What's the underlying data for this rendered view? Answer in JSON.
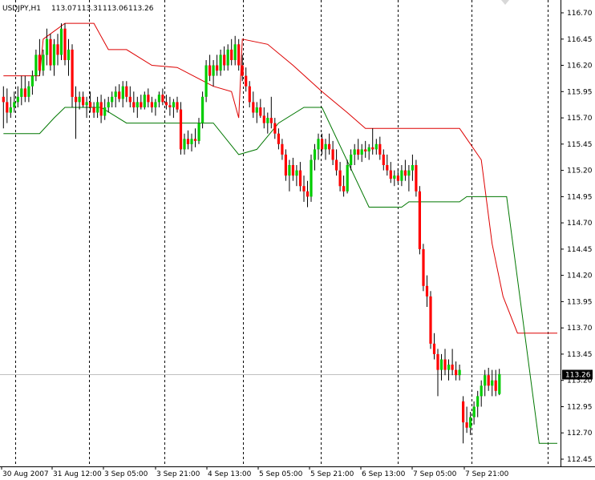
{
  "header": {
    "symbol": "USDJPY,H1",
    "open": "113.07",
    "high": "113.31",
    "low": "113.06",
    "close": "113.26"
  },
  "chart_data": {
    "type": "candlestick",
    "symbol": "USDJPY",
    "timeframe": "H1",
    "grid": false,
    "colors": {
      "background": "#ffffff",
      "bull": "#00cc00",
      "bear": "#ff0000",
      "doji": "#000000",
      "upper_band": "#dd0000",
      "lower_band": "#007700",
      "current_price_line": "#c0c0c0",
      "price_label_bg": "#000000",
      "price_label_text": "#ffffff"
    },
    "ylim": [
      112.4,
      116.85
    ],
    "y_ticks": [
      "116.70",
      "116.45",
      "116.20",
      "115.95",
      "115.70",
      "115.45",
      "115.20",
      "114.95",
      "114.70",
      "114.45",
      "114.20",
      "113.95",
      "113.70",
      "113.45",
      "113.20",
      "112.95",
      "112.70",
      "112.45"
    ],
    "current_price": "113.26",
    "x_ticks": [
      "30 Aug 2007",
      "31 Aug 12:00",
      "3 Sep 05:00",
      "3 Sep 21:00",
      "4 Sep 13:00",
      "5 Sep 05:00",
      "5 Sep 21:00",
      "6 Sep 13:00",
      "7 Sep 05:00",
      "7 Sep 21:00"
    ],
    "session_separators": 10,
    "candles": [
      {
        "o": 115.9,
        "h": 116.0,
        "l": 115.6,
        "c": 115.85
      },
      {
        "o": 115.85,
        "h": 115.98,
        "l": 115.65,
        "c": 115.75
      },
      {
        "o": 115.75,
        "h": 115.9,
        "l": 115.7,
        "c": 115.8
      },
      {
        "o": 115.8,
        "h": 115.95,
        "l": 115.75,
        "c": 115.85
      },
      {
        "o": 115.85,
        "h": 116.0,
        "l": 115.8,
        "c": 115.9
      },
      {
        "o": 115.9,
        "h": 116.1,
        "l": 115.82,
        "c": 115.98
      },
      {
        "o": 115.98,
        "h": 116.1,
        "l": 115.85,
        "c": 115.9
      },
      {
        "o": 115.9,
        "h": 116.05,
        "l": 115.85,
        "c": 116.0
      },
      {
        "o": 116.0,
        "h": 116.15,
        "l": 115.92,
        "c": 116.1
      },
      {
        "o": 116.1,
        "h": 116.35,
        "l": 116.05,
        "c": 116.3
      },
      {
        "o": 116.3,
        "h": 116.45,
        "l": 116.1,
        "c": 116.15
      },
      {
        "o": 116.15,
        "h": 116.35,
        "l": 116.1,
        "c": 116.3
      },
      {
        "o": 116.3,
        "h": 116.55,
        "l": 116.2,
        "c": 116.45
      },
      {
        "o": 116.45,
        "h": 116.5,
        "l": 116.15,
        "c": 116.2
      },
      {
        "o": 116.2,
        "h": 116.45,
        "l": 116.1,
        "c": 116.4
      },
      {
        "o": 116.4,
        "h": 116.5,
        "l": 116.2,
        "c": 116.3
      },
      {
        "o": 116.3,
        "h": 116.6,
        "l": 116.25,
        "c": 116.55
      },
      {
        "o": 116.55,
        "h": 116.6,
        "l": 116.2,
        "c": 116.25
      },
      {
        "o": 116.25,
        "h": 116.45,
        "l": 116.1,
        "c": 116.35
      },
      {
        "o": 116.35,
        "h": 116.4,
        "l": 115.8,
        "c": 115.9
      },
      {
        "o": 115.9,
        "h": 116.0,
        "l": 115.5,
        "c": 115.85
      },
      {
        "o": 115.85,
        "h": 115.95,
        "l": 115.78,
        "c": 115.9
      },
      {
        "o": 115.9,
        "h": 115.95,
        "l": 115.8,
        "c": 115.82
      },
      {
        "o": 115.82,
        "h": 115.9,
        "l": 115.7,
        "c": 115.85
      },
      {
        "o": 115.85,
        "h": 115.95,
        "l": 115.75,
        "c": 115.8
      },
      {
        "o": 115.8,
        "h": 115.85,
        "l": 115.7,
        "c": 115.75
      },
      {
        "o": 115.75,
        "h": 115.9,
        "l": 115.7,
        "c": 115.85
      },
      {
        "o": 115.85,
        "h": 115.92,
        "l": 115.65,
        "c": 115.72
      },
      {
        "o": 115.72,
        "h": 115.88,
        "l": 115.68,
        "c": 115.8
      },
      {
        "o": 115.8,
        "h": 115.9,
        "l": 115.75,
        "c": 115.85
      },
      {
        "o": 115.85,
        "h": 115.95,
        "l": 115.8,
        "c": 115.9
      },
      {
        "o": 115.9,
        "h": 116.0,
        "l": 115.8,
        "c": 115.95
      },
      {
        "o": 115.95,
        "h": 116.02,
        "l": 115.85,
        "c": 115.88
      },
      {
        "o": 115.88,
        "h": 116.05,
        "l": 115.8,
        "c": 116.0
      },
      {
        "o": 116.0,
        "h": 116.05,
        "l": 115.85,
        "c": 115.9
      },
      {
        "o": 115.9,
        "h": 116.0,
        "l": 115.8,
        "c": 115.85
      },
      {
        "o": 115.85,
        "h": 115.95,
        "l": 115.75,
        "c": 115.8
      },
      {
        "o": 115.8,
        "h": 115.9,
        "l": 115.7,
        "c": 115.85
      },
      {
        "o": 115.85,
        "h": 115.92,
        "l": 115.78,
        "c": 115.8
      },
      {
        "o": 115.8,
        "h": 115.95,
        "l": 115.78,
        "c": 115.92
      },
      {
        "o": 115.92,
        "h": 115.98,
        "l": 115.8,
        "c": 115.85
      },
      {
        "o": 115.85,
        "h": 115.9,
        "l": 115.75,
        "c": 115.8
      },
      {
        "o": 115.8,
        "h": 115.88,
        "l": 115.72,
        "c": 115.85
      },
      {
        "o": 115.85,
        "h": 115.95,
        "l": 115.8,
        "c": 115.92
      },
      {
        "o": 115.92,
        "h": 115.98,
        "l": 115.82,
        "c": 115.85
      },
      {
        "o": 115.85,
        "h": 115.92,
        "l": 115.78,
        "c": 115.82
      },
      {
        "o": 115.82,
        "h": 115.9,
        "l": 115.72,
        "c": 115.8
      },
      {
        "o": 115.8,
        "h": 115.88,
        "l": 115.7,
        "c": 115.85
      },
      {
        "o": 115.85,
        "h": 115.9,
        "l": 115.75,
        "c": 115.78
      },
      {
        "o": 115.78,
        "h": 115.85,
        "l": 115.35,
        "c": 115.4
      },
      {
        "o": 115.4,
        "h": 115.55,
        "l": 115.35,
        "c": 115.5
      },
      {
        "o": 115.5,
        "h": 115.58,
        "l": 115.4,
        "c": 115.45
      },
      {
        "o": 115.45,
        "h": 115.55,
        "l": 115.38,
        "c": 115.5
      },
      {
        "o": 115.5,
        "h": 115.6,
        "l": 115.42,
        "c": 115.48
      },
      {
        "o": 115.48,
        "h": 115.7,
        "l": 115.45,
        "c": 115.65
      },
      {
        "o": 115.65,
        "h": 115.95,
        "l": 115.6,
        "c": 115.9
      },
      {
        "o": 115.9,
        "h": 116.25,
        "l": 115.85,
        "c": 116.2
      },
      {
        "o": 116.2,
        "h": 116.3,
        "l": 116.05,
        "c": 116.1
      },
      {
        "o": 116.1,
        "h": 116.25,
        "l": 116.0,
        "c": 116.2
      },
      {
        "o": 116.2,
        "h": 116.3,
        "l": 116.1,
        "c": 116.15
      },
      {
        "o": 116.15,
        "h": 116.35,
        "l": 116.1,
        "c": 116.3
      },
      {
        "o": 116.3,
        "h": 116.38,
        "l": 116.15,
        "c": 116.2
      },
      {
        "o": 116.2,
        "h": 116.4,
        "l": 116.15,
        "c": 116.35
      },
      {
        "o": 116.35,
        "h": 116.45,
        "l": 116.2,
        "c": 116.25
      },
      {
        "o": 116.25,
        "h": 116.48,
        "l": 116.2,
        "c": 116.4
      },
      {
        "o": 116.4,
        "h": 116.45,
        "l": 116.15,
        "c": 116.2
      },
      {
        "o": 116.2,
        "h": 116.3,
        "l": 116.05,
        "c": 116.1
      },
      {
        "o": 116.1,
        "h": 116.18,
        "l": 115.95,
        "c": 116.0
      },
      {
        "o": 116.0,
        "h": 116.05,
        "l": 115.8,
        "c": 115.85
      },
      {
        "o": 115.85,
        "h": 115.95,
        "l": 115.7,
        "c": 115.75
      },
      {
        "o": 115.75,
        "h": 115.85,
        "l": 115.65,
        "c": 115.8
      },
      {
        "o": 115.8,
        "h": 115.88,
        "l": 115.7,
        "c": 115.72
      },
      {
        "o": 115.72,
        "h": 115.8,
        "l": 115.6,
        "c": 115.65
      },
      {
        "o": 115.65,
        "h": 115.75,
        "l": 115.55,
        "c": 115.7
      },
      {
        "o": 115.7,
        "h": 115.9,
        "l": 115.6,
        "c": 115.65
      },
      {
        "o": 115.65,
        "h": 115.7,
        "l": 115.5,
        "c": 115.55
      },
      {
        "o": 115.55,
        "h": 115.6,
        "l": 115.4,
        "c": 115.45
      },
      {
        "o": 115.45,
        "h": 115.5,
        "l": 115.3,
        "c": 115.35
      },
      {
        "o": 115.35,
        "h": 115.4,
        "l": 115.1,
        "c": 115.15
      },
      {
        "o": 115.15,
        "h": 115.3,
        "l": 115.0,
        "c": 115.25
      },
      {
        "o": 115.25,
        "h": 115.32,
        "l": 115.1,
        "c": 115.15
      },
      {
        "o": 115.15,
        "h": 115.25,
        "l": 115.05,
        "c": 115.2
      },
      {
        "o": 115.2,
        "h": 115.28,
        "l": 115.0,
        "c": 115.05
      },
      {
        "o": 115.05,
        "h": 115.15,
        "l": 114.9,
        "c": 115.0
      },
      {
        "o": 115.0,
        "h": 115.1,
        "l": 114.85,
        "c": 114.95
      },
      {
        "o": 114.95,
        "h": 115.35,
        "l": 114.9,
        "c": 115.3
      },
      {
        "o": 115.3,
        "h": 115.45,
        "l": 115.2,
        "c": 115.4
      },
      {
        "o": 115.4,
        "h": 115.55,
        "l": 115.3,
        "c": 115.5
      },
      {
        "o": 115.5,
        "h": 115.55,
        "l": 115.35,
        "c": 115.4
      },
      {
        "o": 115.4,
        "h": 115.5,
        "l": 115.3,
        "c": 115.45
      },
      {
        "o": 115.45,
        "h": 115.55,
        "l": 115.35,
        "c": 115.4
      },
      {
        "o": 115.4,
        "h": 115.48,
        "l": 115.25,
        "c": 115.3
      },
      {
        "o": 115.3,
        "h": 115.4,
        "l": 115.15,
        "c": 115.2
      },
      {
        "o": 115.2,
        "h": 115.28,
        "l": 115.0,
        "c": 115.05
      },
      {
        "o": 115.05,
        "h": 115.15,
        "l": 114.95,
        "c": 115.0
      },
      {
        "o": 115.0,
        "h": 115.3,
        "l": 114.98,
        "c": 115.25
      },
      {
        "o": 115.25,
        "h": 115.4,
        "l": 115.2,
        "c": 115.35
      },
      {
        "o": 115.35,
        "h": 115.45,
        "l": 115.25,
        "c": 115.4
      },
      {
        "o": 115.4,
        "h": 115.5,
        "l": 115.3,
        "c": 115.35
      },
      {
        "o": 115.35,
        "h": 115.45,
        "l": 115.28,
        "c": 115.4
      },
      {
        "o": 115.4,
        "h": 115.48,
        "l": 115.32,
        "c": 115.38
      },
      {
        "o": 115.38,
        "h": 115.45,
        "l": 115.3,
        "c": 115.42
      },
      {
        "o": 115.42,
        "h": 115.6,
        "l": 115.35,
        "c": 115.4
      },
      {
        "o": 115.4,
        "h": 115.5,
        "l": 115.35,
        "c": 115.45
      },
      {
        "o": 115.45,
        "h": 115.52,
        "l": 115.3,
        "c": 115.35
      },
      {
        "o": 115.35,
        "h": 115.4,
        "l": 115.2,
        "c": 115.25
      },
      {
        "o": 115.25,
        "h": 115.35,
        "l": 115.15,
        "c": 115.2
      },
      {
        "o": 115.2,
        "h": 115.28,
        "l": 115.08,
        "c": 115.12
      },
      {
        "o": 115.12,
        "h": 115.2,
        "l": 115.05,
        "c": 115.15
      },
      {
        "o": 115.15,
        "h": 115.22,
        "l": 115.08,
        "c": 115.1
      },
      {
        "o": 115.1,
        "h": 115.25,
        "l": 115.05,
        "c": 115.2
      },
      {
        "o": 115.2,
        "h": 115.3,
        "l": 115.1,
        "c": 115.15
      },
      {
        "o": 115.15,
        "h": 115.25,
        "l": 115.0,
        "c": 115.2
      },
      {
        "o": 115.2,
        "h": 115.35,
        "l": 115.1,
        "c": 115.25
      },
      {
        "o": 115.25,
        "h": 115.3,
        "l": 114.95,
        "c": 115.0
      },
      {
        "o": 115.0,
        "h": 115.05,
        "l": 114.4,
        "c": 114.45
      },
      {
        "o": 114.45,
        "h": 114.5,
        "l": 114.05,
        "c": 114.1
      },
      {
        "o": 114.1,
        "h": 114.2,
        "l": 113.9,
        "c": 114.0
      },
      {
        "o": 114.0,
        "h": 114.05,
        "l": 113.5,
        "c": 113.55
      },
      {
        "o": 113.55,
        "h": 113.65,
        "l": 113.4,
        "c": 113.45
      },
      {
        "o": 113.45,
        "h": 113.5,
        "l": 113.05,
        "c": 113.3
      },
      {
        "o": 113.3,
        "h": 113.45,
        "l": 113.2,
        "c": 113.4
      },
      {
        "o": 113.4,
        "h": 113.5,
        "l": 113.25,
        "c": 113.3
      },
      {
        "o": 113.3,
        "h": 113.4,
        "l": 113.2,
        "c": 113.35
      },
      {
        "o": 113.35,
        "h": 113.5,
        "l": 113.25,
        "c": 113.3
      },
      {
        "o": 113.3,
        "h": 113.38,
        "l": 113.2,
        "c": 113.25
      },
      {
        "o": 113.25,
        "h": 113.35,
        "l": 113.2,
        "c": 113.3
      },
      {
        "o": 113.0,
        "h": 113.05,
        "l": 112.6,
        "c": 112.8
      },
      {
        "o": 112.8,
        "h": 112.95,
        "l": 112.7,
        "c": 112.75
      },
      {
        "o": 112.75,
        "h": 112.9,
        "l": 112.68,
        "c": 112.85
      },
      {
        "o": 112.85,
        "h": 113.0,
        "l": 112.78,
        "c": 112.95
      },
      {
        "o": 112.95,
        "h": 113.1,
        "l": 112.85,
        "c": 113.05
      },
      {
        "o": 113.05,
        "h": 113.2,
        "l": 112.95,
        "c": 113.15
      },
      {
        "o": 113.15,
        "h": 113.3,
        "l": 113.05,
        "c": 113.25
      },
      {
        "o": 113.25,
        "h": 113.32,
        "l": 113.1,
        "c": 113.15
      },
      {
        "o": 113.15,
        "h": 113.3,
        "l": 113.05,
        "c": 113.2
      },
      {
        "o": 113.2,
        "h": 113.3,
        "l": 113.05,
        "c": 113.1
      },
      {
        "o": 113.07,
        "h": 113.31,
        "l": 113.06,
        "c": 113.26
      }
    ],
    "upper_band": [
      {
        "i": 0,
        "v": 116.1
      },
      {
        "i": 10,
        "v": 116.1
      },
      {
        "i": 11,
        "v": 116.45
      },
      {
        "i": 17,
        "v": 116.6
      },
      {
        "i": 25,
        "v": 116.6
      },
      {
        "i": 29,
        "v": 116.35
      },
      {
        "i": 34,
        "v": 116.35
      },
      {
        "i": 41,
        "v": 116.2
      },
      {
        "i": 48,
        "v": 116.18
      },
      {
        "i": 58,
        "v": 116.0
      },
      {
        "i": 63,
        "v": 115.95
      },
      {
        "i": 65,
        "v": 115.7
      },
      {
        "i": 66,
        "v": 116.45
      },
      {
        "i": 73,
        "v": 116.4
      },
      {
        "i": 80,
        "v": 116.2
      },
      {
        "i": 88,
        "v": 115.95
      },
      {
        "i": 95,
        "v": 115.75
      },
      {
        "i": 100,
        "v": 115.6
      },
      {
        "i": 126,
        "v": 115.6
      },
      {
        "i": 127,
        "v": 115.55
      },
      {
        "i": 132,
        "v": 115.3
      },
      {
        "i": 135,
        "v": 114.5
      },
      {
        "i": 138,
        "v": 114.0
      },
      {
        "i": 142,
        "v": 113.65
      },
      {
        "i": 153,
        "v": 113.65
      }
    ],
    "lower_band": [
      {
        "i": 0,
        "v": 115.55
      },
      {
        "i": 10,
        "v": 115.55
      },
      {
        "i": 14,
        "v": 115.7
      },
      {
        "i": 17,
        "v": 115.8
      },
      {
        "i": 27,
        "v": 115.8
      },
      {
        "i": 34,
        "v": 115.65
      },
      {
        "i": 58,
        "v": 115.65
      },
      {
        "i": 65,
        "v": 115.35
      },
      {
        "i": 70,
        "v": 115.4
      },
      {
        "i": 76,
        "v": 115.65
      },
      {
        "i": 83,
        "v": 115.8
      },
      {
        "i": 88,
        "v": 115.8
      },
      {
        "i": 101,
        "v": 114.85
      },
      {
        "i": 110,
        "v": 114.85
      },
      {
        "i": 112,
        "v": 114.9
      },
      {
        "i": 126,
        "v": 114.9
      },
      {
        "i": 128,
        "v": 114.95
      },
      {
        "i": 139,
        "v": 114.95
      },
      {
        "i": 148,
        "v": 112.6
      },
      {
        "i": 153,
        "v": 112.6
      }
    ]
  }
}
